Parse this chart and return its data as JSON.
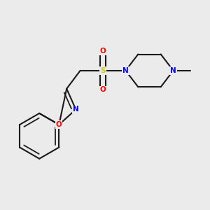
{
  "background_color": "#ebebeb",
  "bond_color": "#1a1a1a",
  "bond_width": 1.5,
  "atom_colors": {
    "N": "#0000ff",
    "O": "#ff0000",
    "S": "#cccc00",
    "C": "#1a1a1a"
  },
  "figsize": [
    3.0,
    3.0
  ],
  "dpi": 100
}
